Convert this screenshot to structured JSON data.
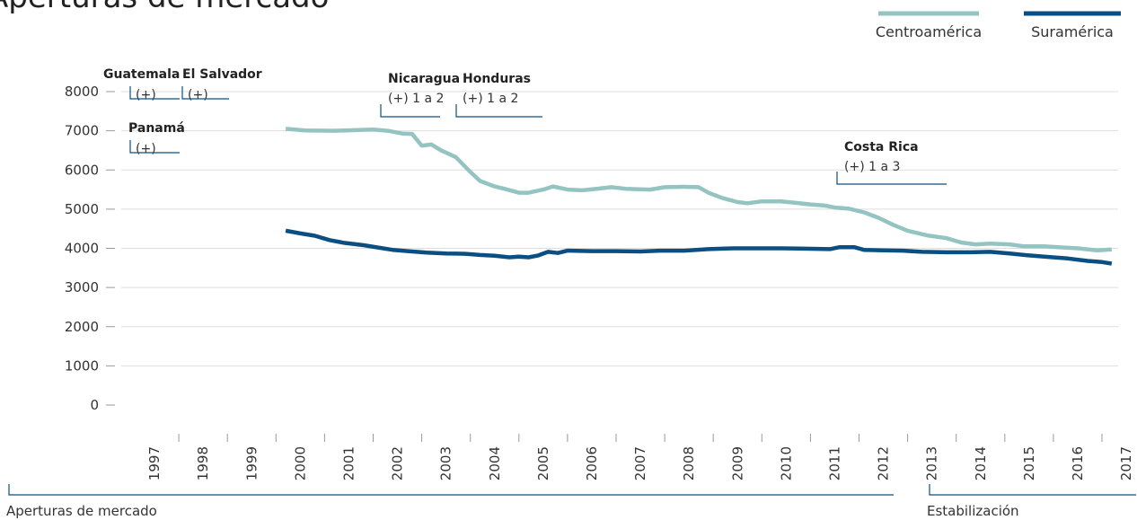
{
  "chart_data": {
    "type": "line",
    "title": "Aperturas de mercado",
    "xlim": [
      1997,
      2018
    ],
    "xticks": [
      1997,
      1998,
      1999,
      2000,
      2001,
      2002,
      2003,
      2004,
      2005,
      2006,
      2007,
      2008,
      2009,
      2010,
      2011,
      2012,
      2013,
      2014,
      2015,
      2016,
      2017
    ],
    "ylim": [
      0,
      8000
    ],
    "yticks": [
      0,
      1000,
      2000,
      3000,
      4000,
      5000,
      6000,
      7000,
      8000
    ],
    "grid": true,
    "legend": "top-right",
    "series": [
      {
        "name": "Centroamérica",
        "color": "#94c4c1",
        "x": [
          2000.2,
          2000.6,
          2001.2,
          2001.7,
          2002.0,
          2002.3,
          2002.6,
          2002.8,
          2003.0,
          2003.2,
          2003.4,
          2003.7,
          2004.0,
          2004.2,
          2004.5,
          2004.7,
          2005.0,
          2005.2,
          2005.5,
          2005.7,
          2006.0,
          2006.3,
          2006.6,
          2006.9,
          2007.2,
          2007.7,
          2008.0,
          2008.4,
          2008.7,
          2008.9,
          2009.2,
          2009.5,
          2009.7,
          2010.0,
          2010.4,
          2010.7,
          2011.0,
          2011.3,
          2011.5,
          2011.8,
          2012.1,
          2012.4,
          2012.7,
          2013.0,
          2013.4,
          2013.8,
          2014.1,
          2014.4,
          2014.7,
          2015.1,
          2015.4,
          2015.8,
          2016.1,
          2016.5,
          2016.9,
          2017.2
        ],
        "values": [
          7050,
          7010,
          7000,
          7020,
          7030,
          7000,
          6930,
          6920,
          6620,
          6650,
          6500,
          6330,
          5950,
          5720,
          5580,
          5520,
          5420,
          5420,
          5500,
          5580,
          5500,
          5480,
          5520,
          5560,
          5520,
          5500,
          5560,
          5570,
          5560,
          5420,
          5280,
          5180,
          5150,
          5200,
          5200,
          5160,
          5120,
          5090,
          5040,
          5010,
          4920,
          4780,
          4600,
          4450,
          4330,
          4260,
          4150,
          4100,
          4120,
          4100,
          4050,
          4050,
          4030,
          4000,
          3950,
          3970
        ]
      },
      {
        "name": "Suramérica",
        "color": "#0b4f82",
        "x": [
          2000.2,
          2000.5,
          2000.8,
          2001.1,
          2001.4,
          2001.8,
          2002.1,
          2002.4,
          2002.8,
          2003.1,
          2003.5,
          2003.9,
          2004.2,
          2004.5,
          2004.8,
          2005.0,
          2005.2,
          2005.4,
          2005.6,
          2005.8,
          2006.0,
          2006.5,
          2007.0,
          2007.5,
          2007.9,
          2008.4,
          2008.9,
          2009.4,
          2009.9,
          2010.4,
          2010.9,
          2011.4,
          2011.6,
          2011.9,
          2012.1,
          2012.5,
          2012.9,
          2013.3,
          2013.8,
          2014.3,
          2014.7,
          2015.1,
          2015.5,
          2015.9,
          2016.3,
          2016.7,
          2017.0,
          2017.2
        ],
        "values": [
          4450,
          4380,
          4320,
          4210,
          4140,
          4080,
          4020,
          3960,
          3920,
          3890,
          3870,
          3860,
          3830,
          3810,
          3770,
          3790,
          3770,
          3820,
          3910,
          3880,
          3940,
          3930,
          3930,
          3920,
          3940,
          3940,
          3980,
          4000,
          4000,
          4000,
          3990,
          3980,
          4030,
          4030,
          3960,
          3950,
          3940,
          3910,
          3900,
          3900,
          3910,
          3870,
          3820,
          3780,
          3740,
          3680,
          3650,
          3610
        ]
      }
    ],
    "annotations": [
      {
        "label": "Guatemala",
        "note": "(+)"
      },
      {
        "label": "El Salvador",
        "note": "(+)"
      },
      {
        "label": "Panamá",
        "note": "(+)"
      },
      {
        "label": "Nicaragua",
        "note": "(+) 1 a 2"
      },
      {
        "label": "Honduras",
        "note": "(+) 1 a 2"
      },
      {
        "label": "Costa Rica",
        "note": "(+) 1 a 3"
      }
    ],
    "periods": [
      "Aperturas de mercado",
      "Estabilización"
    ]
  }
}
